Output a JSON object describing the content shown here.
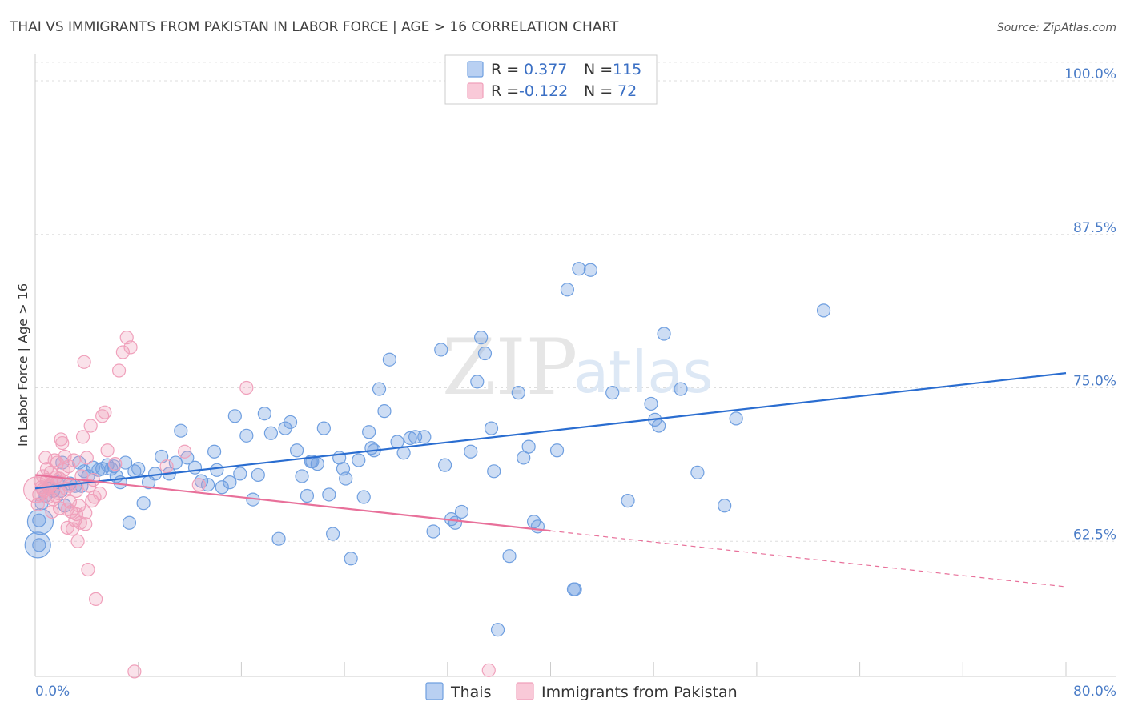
{
  "chart_data": {
    "type": "scatter",
    "title": "THAI VS IMMIGRANTS FROM PAKISTAN IN LABOR FORCE | AGE > 16 CORRELATION CHART",
    "source": "Source: ZipAtlas.com",
    "xlabel": "",
    "ylabel": "In Labor Force | Age > 16",
    "xlim": [
      0,
      80
    ],
    "ylim": [
      51.5,
      101.5
    ],
    "x_tick_labels": [
      "0.0%",
      "80.0%"
    ],
    "y_ticks": [
      62.5,
      75.0,
      87.5,
      100.0
    ],
    "y_tick_labels": [
      "62.5%",
      "75.0%",
      "87.5%",
      "100.0%"
    ],
    "grid": true,
    "legend_placement": "top-center",
    "watermark": {
      "zip": "ZIP",
      "atlas": "atlas"
    },
    "series": [
      {
        "name": "Thais",
        "color": "#6f9fe0",
        "line_color": "#2a6dd0",
        "r_label": "R =",
        "r_value": "0.377",
        "n_label": "N =",
        "n_value": "115",
        "trend": {
          "x1": 0,
          "y1": 66.8,
          "x2": 80,
          "y2": 76.2,
          "dashed_from": null
        },
        "points": [
          [
            0.3,
            62.2
          ],
          [
            0.3,
            64.2
          ],
          [
            0.5,
            65.6
          ],
          [
            0.8,
            66.2
          ],
          [
            1.1,
            66.8
          ],
          [
            1.4,
            66.6
          ],
          [
            1.7,
            67.3
          ],
          [
            2.0,
            66.6
          ],
          [
            2.3,
            65.4
          ],
          [
            2.7,
            67.2
          ],
          [
            3.1,
            67.0
          ],
          [
            3.4,
            68.9
          ],
          [
            3.8,
            68.2
          ],
          [
            4.1,
            67.8
          ],
          [
            4.5,
            68.5
          ],
          [
            4.9,
            68.3
          ],
          [
            5.2,
            68.4
          ],
          [
            5.6,
            68.7
          ],
          [
            5.9,
            68.4
          ],
          [
            6.3,
            67.8
          ],
          [
            6.6,
            67.3
          ],
          [
            7.0,
            68.9
          ],
          [
            7.3,
            64.0
          ],
          [
            7.7,
            68.2
          ],
          [
            8.0,
            68.4
          ],
          [
            8.4,
            65.6
          ],
          [
            8.8,
            67.3
          ],
          [
            9.3,
            68.0
          ],
          [
            9.8,
            69.4
          ],
          [
            10.4,
            68.0
          ],
          [
            10.9,
            68.9
          ],
          [
            11.3,
            71.5
          ],
          [
            11.8,
            69.3
          ],
          [
            12.4,
            68.5
          ],
          [
            12.9,
            67.4
          ],
          [
            13.4,
            67.1
          ],
          [
            13.9,
            69.8
          ],
          [
            14.5,
            66.9
          ],
          [
            15.1,
            67.3
          ],
          [
            15.5,
            72.7
          ],
          [
            15.9,
            68.0
          ],
          [
            16.4,
            71.1
          ],
          [
            16.9,
            65.9
          ],
          [
            17.3,
            67.9
          ],
          [
            17.8,
            72.9
          ],
          [
            18.3,
            71.3
          ],
          [
            18.9,
            62.7
          ],
          [
            19.4,
            71.7
          ],
          [
            19.8,
            72.2
          ],
          [
            20.3,
            69.9
          ],
          [
            20.7,
            67.8
          ],
          [
            21.1,
            66.2
          ],
          [
            21.5,
            69.0
          ],
          [
            21.9,
            68.8
          ],
          [
            22.4,
            71.7
          ],
          [
            22.8,
            66.3
          ],
          [
            23.1,
            63.1
          ],
          [
            23.6,
            69.3
          ],
          [
            23.9,
            68.4
          ],
          [
            24.1,
            67.6
          ],
          [
            24.5,
            61.1
          ],
          [
            25.1,
            69.1
          ],
          [
            25.5,
            66.1
          ],
          [
            25.9,
            71.4
          ],
          [
            26.3,
            69.9
          ],
          [
            26.7,
            74.9
          ],
          [
            27.1,
            73.1
          ],
          [
            27.5,
            77.3
          ],
          [
            28.1,
            70.6
          ],
          [
            28.6,
            69.7
          ],
          [
            29.1,
            70.9
          ],
          [
            29.5,
            71.0
          ],
          [
            30.2,
            71.0
          ],
          [
            30.9,
            63.3
          ],
          [
            31.5,
            78.1
          ],
          [
            31.8,
            68.7
          ],
          [
            32.3,
            64.3
          ],
          [
            32.6,
            64.0
          ],
          [
            33.1,
            64.9
          ],
          [
            33.8,
            69.8
          ],
          [
            34.3,
            75.5
          ],
          [
            34.6,
            79.1
          ],
          [
            34.9,
            77.8
          ],
          [
            35.4,
            71.7
          ],
          [
            35.6,
            68.2
          ],
          [
            35.9,
            55.3
          ],
          [
            36.8,
            61.3
          ],
          [
            37.5,
            74.6
          ],
          [
            37.9,
            69.3
          ],
          [
            38.3,
            70.2
          ],
          [
            38.7,
            64.1
          ],
          [
            39.0,
            63.7
          ],
          [
            40.5,
            69.9
          ],
          [
            41.3,
            83.0
          ],
          [
            41.8,
            58.6
          ],
          [
            41.9,
            58.6
          ],
          [
            42.2,
            84.7
          ],
          [
            43.1,
            84.6
          ],
          [
            44.8,
            74.6
          ],
          [
            46.0,
            65.8
          ],
          [
            47.8,
            73.7
          ],
          [
            48.1,
            72.4
          ],
          [
            48.4,
            71.9
          ],
          [
            48.8,
            79.4
          ],
          [
            50.1,
            74.9
          ],
          [
            51.4,
            68.1
          ],
          [
            53.5,
            65.4
          ],
          [
            54.4,
            72.5
          ],
          [
            61.2,
            81.3
          ],
          [
            2.1,
            68.9
          ],
          [
            3.6,
            67.0
          ],
          [
            6.1,
            68.6
          ],
          [
            14.1,
            68.3
          ],
          [
            21.4,
            69.0
          ],
          [
            26.1,
            70.1
          ]
        ],
        "large_points": [
          [
            0.2,
            62.2
          ],
          [
            0.4,
            64.1
          ]
        ]
      },
      {
        "name": "Immigrants from Pakistan",
        "color": "#f0a0bb",
        "line_color": "#e8709a",
        "r_label": "R =",
        "r_value": "-0.122",
        "n_label": "N =",
        "n_value": "72",
        "trend": {
          "x1": 0,
          "y1": 67.9,
          "x2": 80,
          "y2": 58.8,
          "dashed_from": 40
        },
        "points": [
          [
            0.2,
            65.5
          ],
          [
            0.3,
            66.3
          ],
          [
            0.4,
            67.4
          ],
          [
            0.5,
            66.9
          ],
          [
            0.6,
            67.8
          ],
          [
            0.7,
            66.6
          ],
          [
            0.8,
            69.3
          ],
          [
            0.9,
            67.5
          ],
          [
            1.0,
            66.1
          ],
          [
            1.1,
            66.9
          ],
          [
            1.2,
            68.1
          ],
          [
            1.3,
            67.2
          ],
          [
            1.4,
            65.9
          ],
          [
            1.5,
            69.1
          ],
          [
            1.6,
            67.7
          ],
          [
            1.7,
            68.9
          ],
          [
            1.8,
            66.4
          ],
          [
            1.9,
            67.6
          ],
          [
            2.0,
            70.8
          ],
          [
            2.1,
            70.5
          ],
          [
            2.2,
            68.3
          ],
          [
            2.3,
            69.4
          ],
          [
            2.4,
            66.8
          ],
          [
            2.5,
            65.1
          ],
          [
            2.6,
            68.6
          ],
          [
            2.7,
            67.0
          ],
          [
            2.8,
            64.9
          ],
          [
            2.9,
            63.5
          ],
          [
            3.0,
            69.1
          ],
          [
            3.1,
            64.2
          ],
          [
            3.2,
            66.6
          ],
          [
            3.3,
            62.5
          ],
          [
            3.4,
            65.4
          ],
          [
            3.5,
            64.0
          ],
          [
            3.6,
            67.8
          ],
          [
            3.7,
            71.0
          ],
          [
            3.8,
            77.1
          ],
          [
            3.9,
            64.8
          ],
          [
            4.0,
            69.3
          ],
          [
            4.1,
            60.2
          ],
          [
            4.2,
            67.0
          ],
          [
            4.3,
            71.9
          ],
          [
            4.4,
            65.8
          ],
          [
            4.5,
            67.5
          ],
          [
            4.6,
            66.1
          ],
          [
            4.7,
            57.8
          ],
          [
            5.2,
            72.7
          ],
          [
            5.4,
            73.0
          ],
          [
            5.6,
            69.9
          ],
          [
            6.2,
            68.8
          ],
          [
            6.5,
            76.4
          ],
          [
            6.8,
            77.9
          ],
          [
            7.1,
            79.1
          ],
          [
            7.4,
            78.3
          ],
          [
            7.7,
            51.9
          ],
          [
            10.2,
            68.6
          ],
          [
            11.6,
            69.8
          ],
          [
            12.7,
            67.1
          ],
          [
            16.4,
            75.0
          ],
          [
            35.2,
            52.0
          ],
          [
            0.6,
            66.7
          ],
          [
            1.1,
            67.0
          ],
          [
            1.6,
            66.2
          ],
          [
            2.2,
            67.4
          ],
          [
            2.7,
            65.7
          ],
          [
            3.2,
            64.7
          ],
          [
            1.3,
            64.9
          ],
          [
            0.9,
            68.4
          ],
          [
            2.5,
            63.6
          ],
          [
            3.9,
            63.9
          ],
          [
            5.0,
            66.4
          ],
          [
            1.9,
            65.2
          ]
        ],
        "large_points": [
          [
            0.1,
            66.7
          ]
        ]
      }
    ]
  }
}
